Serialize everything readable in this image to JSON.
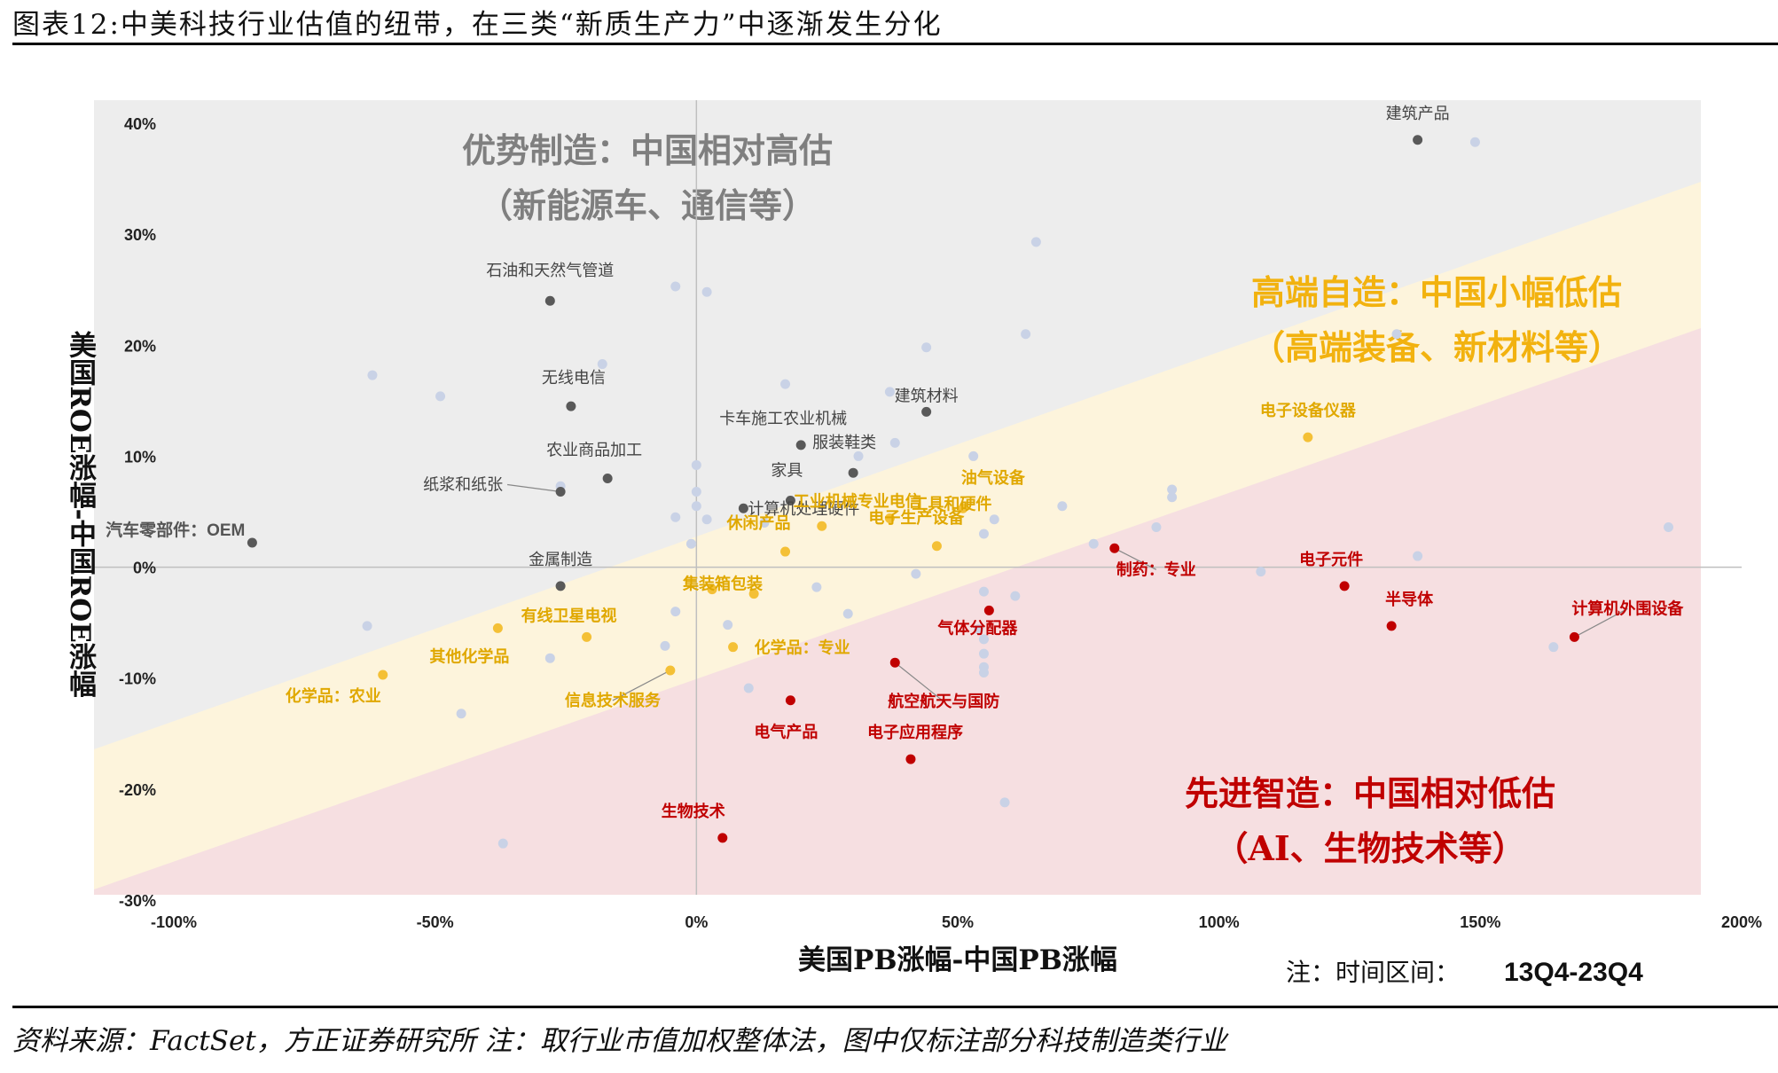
{
  "title": "图表12:中美科技行业估值的纽带，在三类“新质生产力”中逐渐发生分化",
  "source": "资料来源：FactSet，方正证券研究所 注：取行业市值加权整体法，图中仅标注部分科技制造类行业",
  "colors": {
    "gray_zone": "#EDEDED",
    "yellow_zone": "#FDF4DC",
    "red_zone": "#F6DFE1",
    "gray_dot": "#595959",
    "yellow_dot": "#F4C036",
    "red_dot": "#C00000",
    "faint_dot": "#C9D2E6"
  },
  "chart_data": {
    "type": "scatter",
    "xlabel": "美国PB涨幅-中国PB涨幅",
    "ylabel": "美国ROE涨幅-中国ROE涨幅",
    "xlim": [
      -1.0,
      2.0
    ],
    "ylim": [
      -0.3,
      0.4
    ],
    "x_ticks": [
      "-100%",
      "-50%",
      "0%",
      "50%",
      "100%",
      "150%",
      "200%"
    ],
    "y_ticks": [
      "40%",
      "30%",
      "20%",
      "10%",
      "0%",
      "-10%",
      "-20%",
      "-30%"
    ],
    "note": "注：时间区间：",
    "note_period": "13Q4-23Q4",
    "zones": [
      {
        "name": "gray",
        "title": "优势制造：中国相对高估",
        "subtitle": "（新能源车、通信等）"
      },
      {
        "name": "yellow",
        "title": "高端自造：中国小幅低估",
        "subtitle": "（高端装备、新材料等）"
      },
      {
        "name": "red",
        "title": "先进智造：中国相对低估",
        "subtitle": "（AI、生物技术等）"
      }
    ],
    "series": [
      {
        "category": "gray",
        "points": [
          {
            "label": "建筑产品",
            "x": 1.38,
            "y": 0.385
          },
          {
            "label": "石油和天然气管道",
            "x": -0.28,
            "y": 0.24
          },
          {
            "label": "无线电信",
            "x": -0.24,
            "y": 0.145
          },
          {
            "label": "建筑材料",
            "x": 0.44,
            "y": 0.14
          },
          {
            "label": "卡车施工农业机械",
            "x": 0.2,
            "y": 0.11
          },
          {
            "label": "服装鞋类",
            "x": 0.3,
            "y": 0.085
          },
          {
            "label": "农业商品加工",
            "x": -0.17,
            "y": 0.08
          },
          {
            "label": "纸浆和纸张",
            "x": -0.26,
            "y": 0.068
          },
          {
            "label": "计算机处理硬件",
            "x": 0.09,
            "y": 0.053
          },
          {
            "label": "家具",
            "x": 0.18,
            "y": 0.06
          },
          {
            "label": "汽车零部件：OEM",
            "x": -0.85,
            "y": 0.022
          },
          {
            "label": "金属制造",
            "x": -0.26,
            "y": -0.017
          }
        ]
      },
      {
        "category": "yellow",
        "points": [
          {
            "label": "电子设备仪器",
            "x": 1.17,
            "y": 0.117
          },
          {
            "label": "工业机械专业电信",
            "x": 0.24,
            "y": 0.037
          },
          {
            "label": "油气设备",
            "x": 0.51,
            "y": 0.053
          },
          {
            "label": "电子生产设备",
            "x": 0.46,
            "y": 0.019
          },
          {
            "label": "休闲产品",
            "x": 0.17,
            "y": 0.014
          },
          {
            "label": "集装箱包装",
            "x": 0.03,
            "y": -0.02
          },
          {
            "label": "",
            "x": 0.11,
            "y": -0.024
          },
          {
            "label": "有线卫星电视",
            "x": -0.21,
            "y": -0.063
          },
          {
            "label": "工具和硬件",
            "x": 0.37,
            "y": 0.044
          },
          {
            "label": "化学品：专业",
            "x": 0.07,
            "y": -0.072
          },
          {
            "label": "其他化学品",
            "x": -0.38,
            "y": -0.055
          },
          {
            "label": "化学品：农业",
            "x": -0.6,
            "y": -0.097
          },
          {
            "label": "信息技术服务",
            "x": -0.05,
            "y": -0.093
          }
        ]
      },
      {
        "category": "red",
        "points": [
          {
            "label": "制药：专业",
            "x": 0.8,
            "y": 0.017
          },
          {
            "label": "电子元件",
            "x": 1.24,
            "y": -0.017
          },
          {
            "label": "半导体",
            "x": 1.33,
            "y": -0.053
          },
          {
            "label": "计算机外围设备",
            "x": 1.68,
            "y": -0.063
          },
          {
            "label": "气体分配器",
            "x": 0.56,
            "y": -0.039
          },
          {
            "label": "航空航天与国防",
            "x": 0.38,
            "y": -0.086
          },
          {
            "label": "电气产品",
            "x": 0.18,
            "y": -0.12
          },
          {
            "label": "电子应用程序",
            "x": 0.41,
            "y": -0.173
          },
          {
            "label": "生物技术",
            "x": 0.05,
            "y": -0.244
          }
        ]
      },
      {
        "category": "faint",
        "points": [
          {
            "x": 1.49,
            "y": 0.383
          },
          {
            "x": 0.65,
            "y": 0.293
          },
          {
            "x": -0.04,
            "y": 0.253
          },
          {
            "x": 0.02,
            "y": 0.248
          },
          {
            "x": 0.63,
            "y": 0.21
          },
          {
            "x": 1.34,
            "y": 0.21
          },
          {
            "x": 0.44,
            "y": 0.198
          },
          {
            "x": -0.18,
            "y": 0.183
          },
          {
            "x": -0.62,
            "y": 0.173
          },
          {
            "x": 0.17,
            "y": 0.165
          },
          {
            "x": -0.49,
            "y": 0.154
          },
          {
            "x": 0.37,
            "y": 0.158
          },
          {
            "x": 0.38,
            "y": 0.112
          },
          {
            "x": 0.31,
            "y": 0.1
          },
          {
            "x": 0.53,
            "y": 0.1
          },
          {
            "x": 0.0,
            "y": 0.092
          },
          {
            "x": -0.26,
            "y": 0.073
          },
          {
            "x": 0.0,
            "y": 0.068
          },
          {
            "x": 0.91,
            "y": 0.07
          },
          {
            "x": 0.91,
            "y": 0.063
          },
          {
            "x": 0.7,
            "y": 0.055
          },
          {
            "x": 0.0,
            "y": 0.055
          },
          {
            "x": -0.04,
            "y": 0.045
          },
          {
            "x": 0.02,
            "y": 0.043
          },
          {
            "x": 0.57,
            "y": 0.043
          },
          {
            "x": 0.13,
            "y": 0.04
          },
          {
            "x": 1.86,
            "y": 0.036
          },
          {
            "x": 0.88,
            "y": 0.036
          },
          {
            "x": 0.55,
            "y": 0.03
          },
          {
            "x": 0.76,
            "y": 0.021
          },
          {
            "x": -0.01,
            "y": 0.021
          },
          {
            "x": 1.38,
            "y": 0.01
          },
          {
            "x": 1.08,
            "y": -0.004
          },
          {
            "x": 0.42,
            "y": -0.006
          },
          {
            "x": 0.23,
            "y": -0.018
          },
          {
            "x": 0.55,
            "y": -0.022
          },
          {
            "x": 0.61,
            "y": -0.026
          },
          {
            "x": -0.04,
            "y": -0.04
          },
          {
            "x": 0.29,
            "y": -0.042
          },
          {
            "x": -0.63,
            "y": -0.053
          },
          {
            "x": 0.06,
            "y": -0.052
          },
          {
            "x": 0.54,
            "y": -0.056
          },
          {
            "x": 0.55,
            "y": -0.065
          },
          {
            "x": -0.06,
            "y": -0.071
          },
          {
            "x": 0.55,
            "y": -0.078
          },
          {
            "x": -0.28,
            "y": -0.082
          },
          {
            "x": 0.55,
            "y": -0.09
          },
          {
            "x": 0.55,
            "y": -0.095
          },
          {
            "x": 1.64,
            "y": -0.072
          },
          {
            "x": -0.45,
            "y": -0.132
          },
          {
            "x": 0.1,
            "y": -0.109
          },
          {
            "x": -0.37,
            "y": -0.249
          },
          {
            "x": 0.59,
            "y": -0.212
          }
        ]
      }
    ]
  }
}
